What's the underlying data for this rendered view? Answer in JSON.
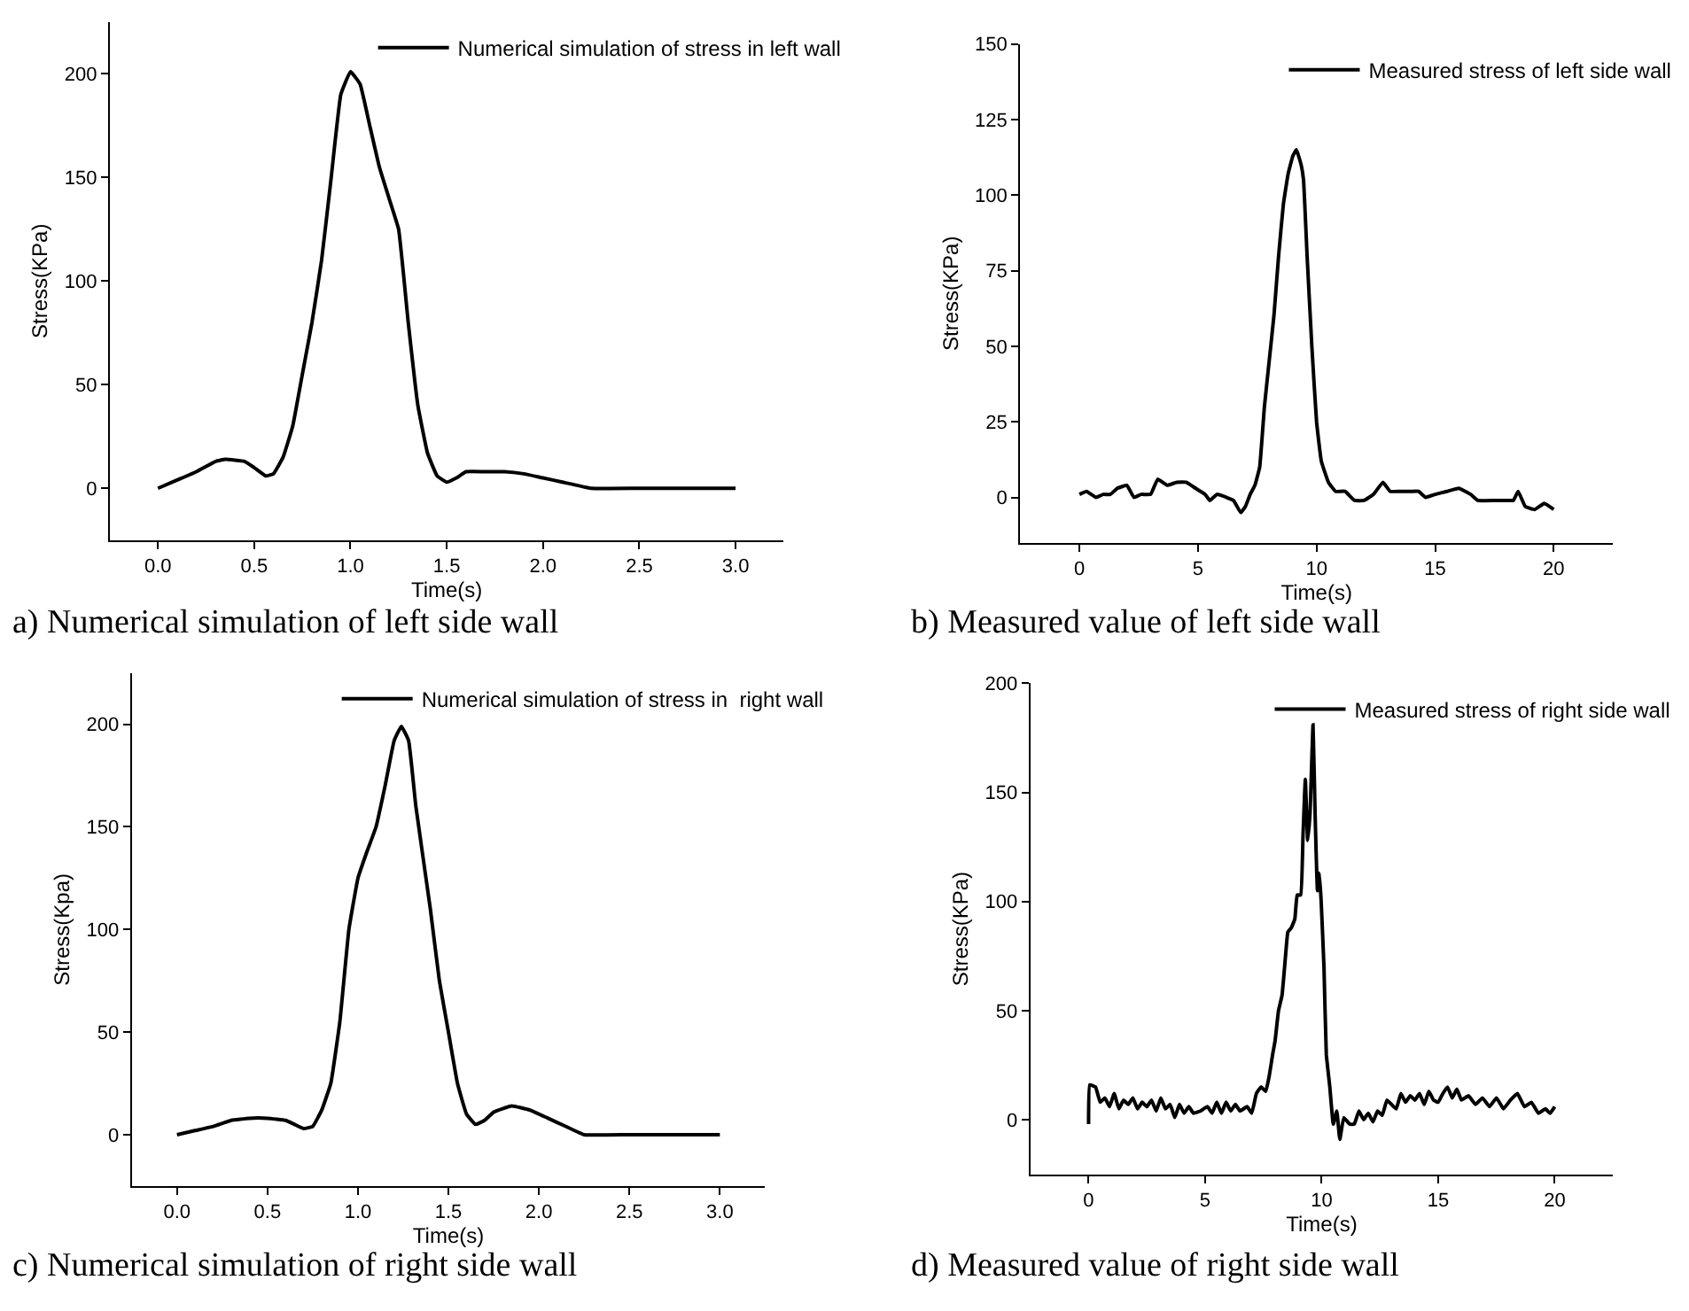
{
  "chart_data": [
    {
      "type": "line",
      "xlabel": "Time(s)",
      "ylabel": "Stress(KPa)",
      "legend": "top right",
      "annotations": [
        "a) Numerical simulation of left side wall"
      ],
      "xlim": [
        -0.25,
        3.25
      ],
      "ylim": [
        -25,
        225
      ],
      "xticks": [
        {
          "value": 0,
          "label": "0.0"
        },
        {
          "value": 0.5,
          "label": "0.5"
        },
        {
          "value": 1,
          "label": "1.0"
        },
        {
          "value": 1.5,
          "label": "1.5"
        },
        {
          "value": 2,
          "label": "2.0"
        },
        {
          "value": 2.5,
          "label": "2.5"
        },
        {
          "value": 3,
          "label": "3.0"
        }
      ],
      "yticks": [
        0,
        50,
        100,
        150,
        200
      ],
      "series": [
        {
          "name": "Numerical simulation of stress in left wall",
          "color": "#000000",
          "x": [
            0,
            0.1,
            0.2,
            0.3,
            0.35,
            0.45,
            0.5,
            0.56,
            0.6,
            0.65,
            0.7,
            0.75,
            0.8,
            0.85,
            0.9,
            0.95,
            1.0,
            1.05,
            1.1,
            1.15,
            1.2,
            1.25,
            1.3,
            1.35,
            1.4,
            1.45,
            1.5,
            1.55,
            1.6,
            1.7,
            1.8,
            1.9,
            2.0,
            2.1,
            2.25,
            2.5,
            3.0
          ],
          "values": [
            0,
            4,
            8,
            13,
            14,
            13,
            10,
            6,
            7,
            15,
            30,
            55,
            80,
            110,
            150,
            190,
            201,
            195,
            175,
            155,
            140,
            125,
            80,
            40,
            17,
            6,
            3,
            5,
            8,
            8,
            8,
            7,
            5,
            3,
            0,
            0,
            0
          ]
        }
      ]
    },
    {
      "type": "line",
      "xlabel": "Time(s)",
      "ylabel": "Stress(KPa)",
      "legend": "top right",
      "annotations": [
        "b) Measured value of left side wall"
      ],
      "xlim": [
        -2.5,
        22.5
      ],
      "ylim": [
        -15,
        150
      ],
      "xticks": [
        0,
        5,
        10,
        15,
        20
      ],
      "yticks": [
        0,
        25,
        50,
        75,
        100,
        125,
        150
      ],
      "series": [
        {
          "name": "Measured stress of left side wall",
          "color": "#000000",
          "x": [
            0,
            0.3,
            0.7,
            1,
            1.3,
            1.6,
            2,
            2.3,
            2.6,
            3,
            3.3,
            3.7,
            4.1,
            4.5,
            4.9,
            5.3,
            5.5,
            5.8,
            6.2,
            6.5,
            6.8,
            7.0,
            7.2,
            7.4,
            7.6,
            7.8,
            8.0,
            8.2,
            8.4,
            8.6,
            8.8,
            9.0,
            9.15,
            9.35,
            9.45,
            9.6,
            9.8,
            10.0,
            10.2,
            10.5,
            10.8,
            11.2,
            11.6,
            12.0,
            12.4,
            12.8,
            13.1,
            13.5,
            14.0,
            14.3,
            14.6,
            15.0,
            15.5,
            16.0,
            16.5,
            16.8,
            17.5,
            18.0,
            18.3,
            18.5,
            18.8,
            19.2,
            19.6,
            20.0
          ],
          "values": [
            1,
            2,
            0,
            1,
            1,
            3,
            4,
            0,
            1,
            1,
            6,
            4,
            5,
            5,
            3,
            1,
            -1,
            1,
            0,
            -1,
            -5,
            -3,
            1,
            4,
            10,
            30,
            45,
            60,
            80,
            97,
            107,
            113,
            115,
            110,
            105,
            80,
            50,
            25,
            12,
            5,
            2,
            2,
            -1,
            -1,
            1,
            5,
            2,
            2,
            2,
            2,
            0,
            1,
            2,
            3,
            1,
            -1,
            -1,
            -1,
            -1,
            2,
            -3,
            -4,
            -2,
            -4
          ]
        }
      ]
    },
    {
      "type": "line",
      "xlabel": "Time(s)",
      "ylabel": "Stress(Kpa)",
      "legend": "top right",
      "annotations": [
        "c) Numerical simulation of right side wall"
      ],
      "xlim": [
        -0.25,
        3.25
      ],
      "ylim": [
        -25,
        225
      ],
      "xticks": [
        {
          "value": 0,
          "label": "0.0"
        },
        {
          "value": 0.5,
          "label": "0.5"
        },
        {
          "value": 1,
          "label": "1.0"
        },
        {
          "value": 1.5,
          "label": "1.5"
        },
        {
          "value": 2,
          "label": "2.0"
        },
        {
          "value": 2.5,
          "label": "2.5"
        },
        {
          "value": 3,
          "label": "3.0"
        }
      ],
      "yticks": [
        0,
        50,
        100,
        150,
        200
      ],
      "series": [
        {
          "name": "Numerical simulation of stress in  right wall",
          "color": "#000000",
          "x": [
            0,
            0.1,
            0.2,
            0.3,
            0.4,
            0.5,
            0.6,
            0.65,
            0.7,
            0.75,
            0.8,
            0.85,
            0.9,
            0.95,
            1.0,
            1.05,
            1.1,
            1.15,
            1.2,
            1.24,
            1.28,
            1.32,
            1.4,
            1.45,
            1.5,
            1.55,
            1.6,
            1.65,
            1.7,
            1.75,
            1.85,
            1.95,
            2.05,
            2.15,
            2.25,
            2.5,
            3.0
          ],
          "values": [
            0,
            2,
            4,
            7,
            8,
            8,
            7,
            5,
            3,
            4,
            12,
            25,
            55,
            100,
            125,
            138,
            150,
            170,
            192,
            199,
            192,
            160,
            110,
            75,
            50,
            25,
            10,
            5,
            7,
            11,
            14,
            12,
            8,
            4,
            0,
            0,
            0
          ]
        }
      ]
    },
    {
      "type": "line",
      "xlabel": "Time(s)",
      "ylabel": "Stress(KPa)",
      "legend": "top right",
      "annotations": [
        "d) Measured value of right side wall"
      ],
      "xlim": [
        -2.5,
        22.5
      ],
      "ylim": [
        -25,
        200
      ],
      "xticks": [
        0,
        5,
        10,
        15,
        20
      ],
      "yticks": [
        0,
        50,
        100,
        150,
        200
      ],
      "series": [
        {
          "name": "Measured stress of right side wall",
          "color": "#000000",
          "x": [
            0,
            0.05,
            0.3,
            0.5,
            0.7,
            0.9,
            1.1,
            1.3,
            1.5,
            1.7,
            1.9,
            2.1,
            2.3,
            2.5,
            2.7,
            2.9,
            3.1,
            3.3,
            3.5,
            3.7,
            3.9,
            4.1,
            4.3,
            4.5,
            4.8,
            5.1,
            5.3,
            5.5,
            5.7,
            5.9,
            6.1,
            6.3,
            6.5,
            6.8,
            7.0,
            7.2,
            7.4,
            7.6,
            7.75,
            7.9,
            8.0,
            8.15,
            8.3,
            8.45,
            8.55,
            8.7,
            8.85,
            8.95,
            9.1,
            9.2,
            9.3,
            9.4,
            9.5,
            9.63,
            9.72,
            9.82,
            9.9,
            9.98,
            10.1,
            10.2,
            10.35,
            10.5,
            10.65,
            10.78,
            10.95,
            11.2,
            11.4,
            11.6,
            11.8,
            12.0,
            12.2,
            12.4,
            12.6,
            12.8,
            13.0,
            13.2,
            13.4,
            13.6,
            13.8,
            14.0,
            14.2,
            14.4,
            14.6,
            14.8,
            15.0,
            15.2,
            15.4,
            15.6,
            15.8,
            16.0,
            16.3,
            16.6,
            16.9,
            17.2,
            17.5,
            17.8,
            18.1,
            18.4,
            18.7,
            19.0,
            19.3,
            19.6,
            19.8,
            20.0
          ],
          "values": [
            -2,
            16,
            15,
            8,
            10,
            6,
            12,
            5,
            9,
            7,
            10,
            5,
            8,
            6,
            9,
            4,
            10,
            5,
            7,
            1,
            7,
            3,
            6,
            3,
            4,
            6,
            3,
            8,
            3,
            8,
            4,
            7,
            4,
            6,
            3,
            12,
            15,
            13,
            20,
            30,
            36,
            50,
            57,
            75,
            86,
            88,
            92,
            103,
            103,
            130,
            156,
            128,
            140,
            181,
            140,
            105,
            113,
            100,
            70,
            30,
            15,
            -2,
            4,
            -9,
            1,
            -2,
            -2,
            4,
            0,
            3,
            -1,
            4,
            2,
            9,
            7,
            5,
            12,
            8,
            11,
            9,
            12,
            7,
            13,
            9,
            8,
            12,
            15,
            10,
            14,
            9,
            11,
            7,
            10,
            6,
            10,
            5,
            9,
            12,
            6,
            8,
            3,
            5,
            3,
            6
          ]
        }
      ]
    }
  ]
}
